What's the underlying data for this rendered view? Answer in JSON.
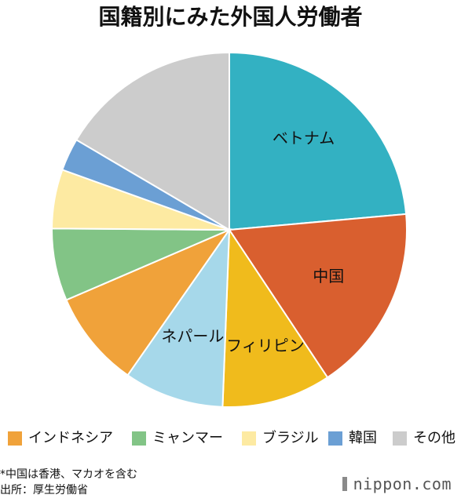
{
  "chart_data": {
    "type": "pie",
    "title": "国籍別にみた外国人労働者",
    "start_angle_deg": 0,
    "direction": "clockwise",
    "slices": [
      {
        "label": "ベトナム",
        "value": 25.4,
        "color": "#33b1c2",
        "label_shown": true
      },
      {
        "label": "中国",
        "value": 18.4,
        "color": "#d95f2f",
        "label_shown": true
      },
      {
        "label": "フィリピン",
        "value": 10.7,
        "color": "#f0bb1c",
        "label_shown": true
      },
      {
        "label": "ネパール",
        "value": 9.8,
        "color": "#a6d8ea",
        "label_shown": true
      },
      {
        "label": "インドネシア",
        "value": 9.5,
        "color": "#f0a23a",
        "label_shown": false
      },
      {
        "label": "ミャンマー",
        "value": 7.1,
        "color": "#82c486",
        "label_shown": false
      },
      {
        "label": "ブラジル",
        "value": 5.8,
        "color": "#fdeaa2",
        "label_shown": false
      },
      {
        "label": "韓国",
        "value": 3.2,
        "color": "#6b9fd4",
        "label_shown": false
      },
      {
        "label": "その他",
        "value": 17.8,
        "color": "#cccccc",
        "label_shown": false
      }
    ],
    "legend": {
      "placement": "bottom",
      "items": [
        {
          "label": "インドネシア",
          "color": "#f0a23a"
        },
        {
          "label": "ミャンマー",
          "color": "#82c486"
        },
        {
          "label": "ブラジル",
          "color": "#fdeaa2"
        },
        {
          "label": "韓国",
          "color": "#6b9fd4"
        },
        {
          "label": "その他",
          "color": "#cccccc"
        }
      ]
    }
  },
  "footnote": "*中国は香港、マカオを含む",
  "source": "出所：厚生労働省",
  "brand": "nippon.com"
}
